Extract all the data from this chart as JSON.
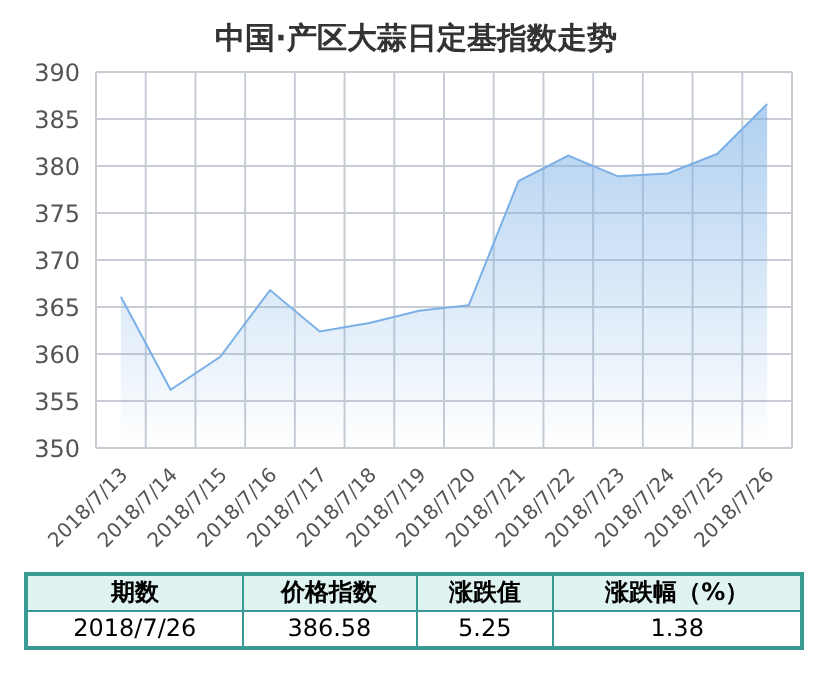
{
  "chart_data": [
    {
      "type": "area",
      "title": "中国·产区大蒜日定基指数走势",
      "categories": [
        "2018/7/13",
        "2018/7/14",
        "2018/7/15",
        "2018/7/16",
        "2018/7/17",
        "2018/7/18",
        "2018/7/19",
        "2018/7/20",
        "2018/7/21",
        "2018/7/22",
        "2018/7/23",
        "2018/7/24",
        "2018/7/25",
        "2018/7/26"
      ],
      "values": [
        366.1,
        356.2,
        359.7,
        366.8,
        362.4,
        363.3,
        364.6,
        365.2,
        378.4,
        381.1,
        378.9,
        379.2,
        381.3,
        386.6
      ],
      "color": "#7ab0e6",
      "ylim": [
        350,
        390
      ],
      "yticks": [
        350,
        355,
        360,
        365,
        370,
        375,
        380,
        385,
        390
      ],
      "grid": true
    },
    {
      "type": "other",
      "categories": [
        "期数",
        "价格指数",
        "涨跌值",
        "涨跌幅（%）"
      ],
      "annotations": [
        "2018/7/26",
        "386.58",
        "5.25",
        "1.38"
      ]
    }
  ]
}
